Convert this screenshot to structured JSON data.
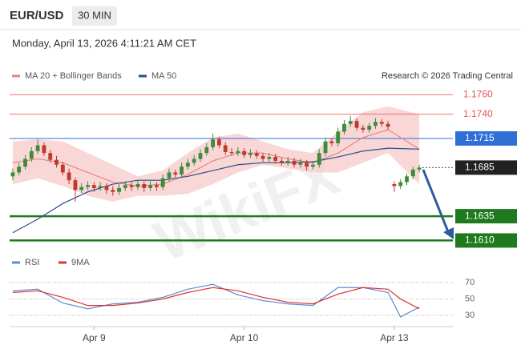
{
  "header": {
    "symbol": "EUR/USD",
    "timeframe": "30 MIN",
    "datetime": "Monday, April 13, 2026 4:11:21 AM CET",
    "credit": "Research © 2026 Trading Central",
    "watermark": "WikiFX"
  },
  "chart_data": [
    {
      "type": "candlestick",
      "xlim": [
        -0.5,
        65.5
      ],
      "ylim": [
        1.1598,
        1.1771
      ],
      "up_color": "#3c8c3c",
      "down_color": "#c0392b",
      "open": [
        1.1676,
        1.168,
        1.1686,
        1.1694,
        1.1702,
        1.1708,
        1.17,
        1.1693,
        1.1688,
        1.168,
        1.1672,
        1.1662,
        1.1665,
        1.1667,
        1.1664,
        1.1666,
        1.1662,
        1.166,
        1.1664,
        1.1667,
        1.1665,
        1.1668,
        1.1664,
        1.1667,
        1.1665,
        1.1674,
        1.168,
        1.1678,
        1.1686,
        1.169,
        1.1694,
        1.17,
        1.1706,
        1.1714,
        1.1708,
        1.1701,
        1.17,
        1.1702,
        1.1698,
        1.17,
        1.1697,
        1.1694,
        1.1696,
        1.1692,
        1.169,
        1.1692,
        1.1688,
        1.169,
        1.1686,
        1.1688,
        1.17,
        1.1712,
        1.171,
        1.1722,
        1.173,
        1.1733,
        1.1726,
        1.1724,
        1.1728,
        1.1732,
        1.173,
        1.1668,
        1.1666,
        1.167,
        1.1676,
        1.1683
      ],
      "high": [
        1.1684,
        1.169,
        1.1698,
        1.1706,
        1.1714,
        1.1711,
        1.1703,
        1.1697,
        1.1691,
        1.1684,
        1.1675,
        1.1669,
        1.1671,
        1.167,
        1.167,
        1.1669,
        1.1666,
        1.1668,
        1.1671,
        1.167,
        1.1672,
        1.1671,
        1.1671,
        1.167,
        1.1678,
        1.1684,
        1.1683,
        1.169,
        1.1694,
        1.1698,
        1.1704,
        1.171,
        1.172,
        1.1717,
        1.1711,
        1.1705,
        1.1706,
        1.1705,
        1.1704,
        1.1703,
        1.17,
        1.17,
        1.1699,
        1.1695,
        1.1696,
        1.1695,
        1.1694,
        1.1693,
        1.1692,
        1.1704,
        1.1716,
        1.1715,
        1.1726,
        1.1734,
        1.1738,
        1.1736,
        1.1729,
        1.1731,
        1.1736,
        1.1735,
        1.1733,
        1.1671,
        1.1673,
        1.1679,
        1.1686,
        1.1688
      ],
      "low": [
        1.1672,
        1.1677,
        1.1683,
        1.1691,
        1.1699,
        1.1697,
        1.169,
        1.1685,
        1.1677,
        1.1668,
        1.165,
        1.1659,
        1.1662,
        1.166,
        1.1661,
        1.1658,
        1.1656,
        1.1657,
        1.1661,
        1.1661,
        1.1662,
        1.166,
        1.1661,
        1.1661,
        1.1662,
        1.1671,
        1.1675,
        1.1675,
        1.1683,
        1.1687,
        1.1691,
        1.1697,
        1.1703,
        1.1705,
        1.1698,
        1.1697,
        1.1697,
        1.1695,
        1.1695,
        1.1694,
        1.1691,
        1.1691,
        1.1689,
        1.1687,
        1.1687,
        1.1685,
        1.1685,
        1.1682,
        1.1683,
        1.1685,
        1.1697,
        1.1707,
        1.1707,
        1.1719,
        1.1727,
        1.1723,
        1.1721,
        1.1721,
        1.1725,
        1.1727,
        1.1724,
        1.166,
        1.1663,
        1.1667,
        1.1673,
        1.168
      ],
      "close": [
        1.168,
        1.1686,
        1.1694,
        1.1702,
        1.1708,
        1.17,
        1.1693,
        1.1688,
        1.168,
        1.1672,
        1.1662,
        1.1665,
        1.1667,
        1.1664,
        1.1666,
        1.1662,
        1.166,
        1.1664,
        1.1667,
        1.1665,
        1.1668,
        1.1664,
        1.1667,
        1.1665,
        1.1674,
        1.168,
        1.1678,
        1.1686,
        1.169,
        1.1694,
        1.17,
        1.1706,
        1.1714,
        1.1708,
        1.1701,
        1.17,
        1.1702,
        1.1698,
        1.17,
        1.1697,
        1.1694,
        1.1696,
        1.1692,
        1.169,
        1.1692,
        1.1688,
        1.169,
        1.1686,
        1.1688,
        1.17,
        1.1712,
        1.171,
        1.1722,
        1.173,
        1.1733,
        1.1726,
        1.1724,
        1.1728,
        1.1732,
        1.173,
        1.1727,
        1.1666,
        1.167,
        1.1676,
        1.1683,
        1.1685
      ],
      "series": [
        {
          "name": "MA 20 + Bollinger Bands",
          "color": "#e8857e",
          "x": [
            0,
            4,
            8,
            12,
            16,
            20,
            24,
            28,
            32,
            36,
            40,
            44,
            48,
            52,
            56,
            60,
            65
          ],
          "values": [
            1.169,
            1.1694,
            1.169,
            1.168,
            1.167,
            1.1666,
            1.1668,
            1.1678,
            1.1692,
            1.17,
            1.17,
            1.1694,
            1.169,
            1.17,
            1.1716,
            1.1724,
            1.1704
          ]
        },
        {
          "name": "MA 50",
          "color": "#2b4f8c",
          "x": [
            0,
            4,
            8,
            12,
            16,
            20,
            24,
            28,
            32,
            36,
            40,
            44,
            48,
            52,
            56,
            60,
            65
          ],
          "values": [
            1.1618,
            1.1632,
            1.1648,
            1.166,
            1.1668,
            1.1672,
            1.1672,
            1.1676,
            1.1682,
            1.1688,
            1.169,
            1.169,
            1.1691,
            1.1696,
            1.1702,
            1.1705,
            1.1704
          ]
        }
      ],
      "bollinger": {
        "color": "#f8c9c9",
        "x": [
          0,
          4,
          8,
          12,
          16,
          20,
          24,
          28,
          32,
          36,
          40,
          44,
          48,
          52,
          56,
          60,
          65
        ],
        "upper": [
          1.1712,
          1.1714,
          1.1712,
          1.17,
          1.1688,
          1.1676,
          1.1682,
          1.17,
          1.1716,
          1.172,
          1.1712,
          1.1704,
          1.17,
          1.1722,
          1.1742,
          1.1748,
          1.174
        ],
        "lower": [
          1.1668,
          1.1674,
          1.1666,
          1.1656,
          1.165,
          1.1656,
          1.1656,
          1.1658,
          1.1668,
          1.168,
          1.1688,
          1.1684,
          1.168,
          1.168,
          1.169,
          1.17,
          1.1668
        ]
      },
      "levels": [
        {
          "value": 1.176,
          "label": "1.1760",
          "color": "#e8554e",
          "style": "thin",
          "box": false
        },
        {
          "value": 1.174,
          "label": "1.1740",
          "color": "#e8554e",
          "style": "thin",
          "box": false
        },
        {
          "value": 1.1715,
          "label": "1.1715",
          "color": "#2f6fd6",
          "style": "thin",
          "box": true
        },
        {
          "value": 1.1685,
          "label": "1.1685",
          "color": "#222222",
          "style": "dotted",
          "box": true
        },
        {
          "value": 1.1635,
          "label": "1.1635",
          "color": "#1f7a1f",
          "style": "thick",
          "box": true
        },
        {
          "value": 1.161,
          "label": "1.1610",
          "color": "#1f7a1f",
          "style": "thick",
          "box": true
        }
      ]
    },
    {
      "type": "line",
      "xlim": [
        -0.5,
        65.5
      ],
      "ylim": [
        22,
        78
      ],
      "yticks": [
        30,
        50,
        70
      ],
      "xticks": [
        {
          "value": 13,
          "label": "Apr 9"
        },
        {
          "value": 37,
          "label": "Apr 10"
        },
        {
          "value": 61,
          "label": "Apr 13"
        }
      ],
      "series": [
        {
          "name": "RSI",
          "color": "#5b8bd6",
          "x": [
            0,
            4,
            8,
            12,
            16,
            20,
            24,
            28,
            32,
            36,
            40,
            44,
            48,
            52,
            56,
            60,
            62,
            65
          ],
          "values": [
            60,
            62,
            45,
            38,
            44,
            46,
            52,
            62,
            68,
            55,
            48,
            44,
            42,
            64,
            64,
            58,
            28,
            40
          ]
        },
        {
          "name": "9MA",
          "color": "#e03030",
          "x": [
            0,
            4,
            8,
            12,
            16,
            20,
            24,
            28,
            32,
            36,
            40,
            44,
            48,
            52,
            56,
            60,
            62,
            65
          ],
          "values": [
            58,
            60,
            52,
            42,
            42,
            45,
            50,
            58,
            64,
            60,
            52,
            46,
            44,
            56,
            64,
            62,
            50,
            38
          ]
        }
      ]
    }
  ]
}
